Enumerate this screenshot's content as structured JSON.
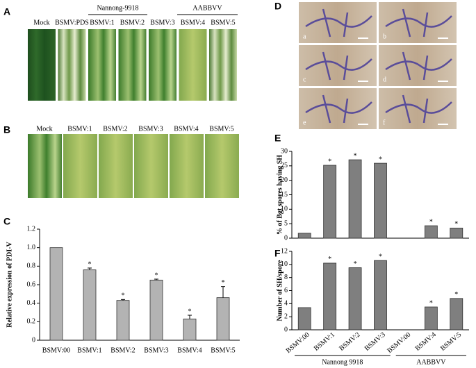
{
  "panel_letters": [
    "A",
    "B",
    "C",
    "D",
    "E",
    "F"
  ],
  "panel_a": {
    "groups": [
      "Nannong-9918",
      "AABBVV"
    ],
    "labels": [
      "Mock",
      "BSMV:PDS",
      "BSMV:1",
      "BSMV:2",
      "BSMV:3",
      "BSMV:4",
      "BSMV:5"
    ]
  },
  "panel_b": {
    "labels": [
      "Mock",
      "BSMV:1",
      "BSMV:2",
      "BSMV:3",
      "BSMV:4",
      "BSMV:5"
    ]
  },
  "panel_d": {
    "labels": [
      "a",
      "b",
      "c",
      "d",
      "e",
      "f"
    ]
  },
  "chart_data": [
    {
      "type": "bar",
      "y_label": "Relative expression of PDI-V",
      "color": "#b3b3b3",
      "categories": [
        "BSMV:00",
        "BSMV:1",
        "BSMV:2",
        "BSMV:3",
        "BSMV:4",
        "BSMV:5"
      ],
      "values": [
        1.0,
        0.76,
        0.43,
        0.65,
        0.23,
        0.46
      ],
      "errors": [
        0,
        0.02,
        0.01,
        0.01,
        0.04,
        0.12
      ],
      "markers": [
        null,
        "*",
        "*",
        "*",
        "*",
        "*"
      ],
      "ylim": [
        0,
        1.2
      ],
      "yticks": [
        0,
        0.2,
        0.4,
        0.6,
        0.8,
        {
          "value": 1,
          "label": "1.0"
        },
        1.2
      ]
    },
    {
      "type": "bar",
      "y_label": "% of Bgt spores having SH",
      "color": "#7f7f7f",
      "values": [
        1.7,
        25.2,
        27.1,
        25.9,
        null,
        4.3,
        3.5
      ],
      "markers": [
        null,
        "*",
        "*",
        "*",
        null,
        "*",
        "*"
      ],
      "ylim": [
        0,
        30
      ],
      "yticks": [
        0,
        5,
        10,
        15,
        20,
        25,
        30
      ]
    },
    {
      "type": "bar",
      "y_label": "Number of SH/spore",
      "color": "#7f7f7f",
      "categories": [
        "BSMV:00",
        "BSMV:1",
        "BSMV:2",
        "BSMV:3",
        "BSMV:00",
        "BSMV:4",
        "BSMV:5"
      ],
      "groups": [
        "Nannong 9918",
        "AABBVV"
      ],
      "values": [
        3.4,
        10.2,
        9.5,
        10.6,
        null,
        3.5,
        4.8
      ],
      "markers": [
        null,
        "*",
        "*",
        "*",
        null,
        "*",
        "*"
      ],
      "ylim": [
        0,
        12
      ],
      "yticks": [
        0,
        2,
        4,
        6,
        8,
        10,
        12
      ]
    }
  ]
}
